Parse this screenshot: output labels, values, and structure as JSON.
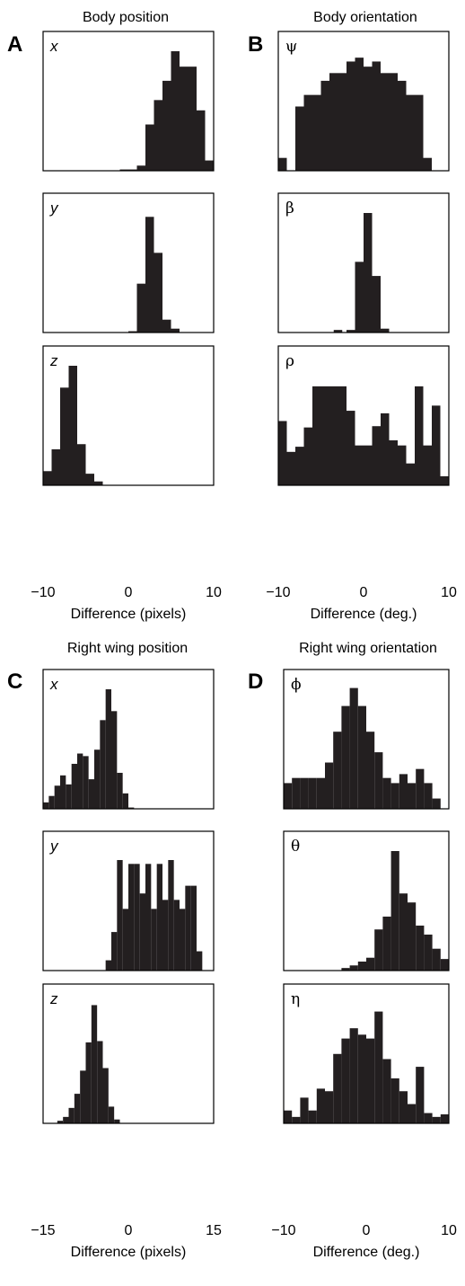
{
  "column_titles": {
    "A": "Body position",
    "B": "Body orientation",
    "C": "Right wing position",
    "D": "Right wing orientation"
  },
  "panel_letters": [
    "A",
    "B",
    "C",
    "D"
  ],
  "chart_data": [
    {
      "panel": "A",
      "type": "bar",
      "title": "Body position",
      "xlabel": "Difference (pixels)",
      "xlim": [
        -10,
        10
      ],
      "xticks": [
        "−10",
        "0",
        "10"
      ],
      "subplots": [
        {
          "label": "x",
          "bin_width": 1,
          "ymax": 1,
          "bins": [
            {
              "x": -0.5,
              "h": 0.01
            },
            {
              "x": 0.5,
              "h": 0.01
            },
            {
              "x": 1.5,
              "h": 0.04
            },
            {
              "x": 2.5,
              "h": 0.36
            },
            {
              "x": 3.5,
              "h": 0.55
            },
            {
              "x": 4.5,
              "h": 0.7
            },
            {
              "x": 5.5,
              "h": 0.93
            },
            {
              "x": 6.5,
              "h": 0.81
            },
            {
              "x": 7.5,
              "h": 0.81
            },
            {
              "x": 8.5,
              "h": 0.47
            },
            {
              "x": 9.5,
              "h": 0.08
            }
          ]
        },
        {
          "label": "y",
          "bin_width": 1,
          "ymax": 1,
          "bins": [
            {
              "x": 0.5,
              "h": 0.01
            },
            {
              "x": 1.5,
              "h": 0.38
            },
            {
              "x": 2.5,
              "h": 0.9
            },
            {
              "x": 3.5,
              "h": 0.62
            },
            {
              "x": 4.5,
              "h": 0.1
            },
            {
              "x": 5.5,
              "h": 0.03
            }
          ]
        },
        {
          "label": "z",
          "bin_width": 1,
          "ymax": 1,
          "bins": [
            {
              "x": -9.5,
              "h": 0.11
            },
            {
              "x": -8.5,
              "h": 0.28
            },
            {
              "x": -7.5,
              "h": 0.76
            },
            {
              "x": -6.5,
              "h": 0.93
            },
            {
              "x": -5.5,
              "h": 0.32
            },
            {
              "x": -4.5,
              "h": 0.09
            },
            {
              "x": -3.5,
              "h": 0.03
            }
          ]
        }
      ]
    },
    {
      "panel": "B",
      "type": "bar",
      "title": "Body orientation",
      "xlabel": "Difference (deg.)",
      "xlim": [
        -10,
        10
      ],
      "xticks": [
        "−10",
        "0",
        "10"
      ],
      "subplots": [
        {
          "label": "ψ",
          "bin_width": 1,
          "ymax": 1,
          "bins": [
            {
              "x": -9.5,
              "h": 0.1
            },
            {
              "x": -7.5,
              "h": 0.5
            },
            {
              "x": -6.5,
              "h": 0.59
            },
            {
              "x": -5.5,
              "h": 0.59
            },
            {
              "x": -4.5,
              "h": 0.7
            },
            {
              "x": -3.5,
              "h": 0.76
            },
            {
              "x": -2.5,
              "h": 0.76
            },
            {
              "x": -1.5,
              "h": 0.85
            },
            {
              "x": -0.5,
              "h": 0.88
            },
            {
              "x": 0.5,
              "h": 0.81
            },
            {
              "x": 1.5,
              "h": 0.85
            },
            {
              "x": 2.5,
              "h": 0.76
            },
            {
              "x": 3.5,
              "h": 0.76
            },
            {
              "x": 4.5,
              "h": 0.7
            },
            {
              "x": 5.5,
              "h": 0.59
            },
            {
              "x": 6.5,
              "h": 0.59
            },
            {
              "x": 7.5,
              "h": 0.1
            }
          ]
        },
        {
          "label": "β",
          "bin_width": 1,
          "ymax": 1,
          "bins": [
            {
              "x": -3,
              "h": 0.02
            },
            {
              "x": -1.5,
              "h": 0.02
            },
            {
              "x": -0.5,
              "h": 0.55
            },
            {
              "x": 0.5,
              "h": 0.93
            },
            {
              "x": 1.5,
              "h": 0.44
            },
            {
              "x": 2.5,
              "h": 0.03
            }
          ]
        },
        {
          "label": "ρ",
          "bin_width": 1,
          "ymax": 1,
          "bins": [
            {
              "x": -9.5,
              "h": 0.5
            },
            {
              "x": -8.5,
              "h": 0.26
            },
            {
              "x": -7.5,
              "h": 0.3
            },
            {
              "x": -6.5,
              "h": 0.45
            },
            {
              "x": -5.5,
              "h": 0.77
            },
            {
              "x": -4.5,
              "h": 0.77
            },
            {
              "x": -3.5,
              "h": 0.77
            },
            {
              "x": -2.5,
              "h": 0.77
            },
            {
              "x": -1.5,
              "h": 0.58
            },
            {
              "x": -0.5,
              "h": 0.31
            },
            {
              "x": 0.5,
              "h": 0.31
            },
            {
              "x": 1.5,
              "h": 0.46
            },
            {
              "x": 2.5,
              "h": 0.56
            },
            {
              "x": 3.5,
              "h": 0.35
            },
            {
              "x": 4.5,
              "h": 0.31
            },
            {
              "x": 5.5,
              "h": 0.17
            },
            {
              "x": 6.5,
              "h": 0.77
            },
            {
              "x": 7.5,
              "h": 0.31
            },
            {
              "x": 8.5,
              "h": 0.62
            },
            {
              "x": 9.5,
              "h": 0.07
            }
          ]
        }
      ]
    },
    {
      "panel": "C",
      "type": "bar",
      "title": "Right wing position",
      "xlabel": "Difference (pixels)",
      "xlim": [
        -15,
        15
      ],
      "xticks": [
        "−15",
        "0",
        "15"
      ],
      "subplots": [
        {
          "label": "x",
          "bin_width": 1,
          "ymax": 1,
          "bins": [
            {
              "x": -14.5,
              "h": 0.05
            },
            {
              "x": -13.5,
              "h": 0.1
            },
            {
              "x": -12.5,
              "h": 0.18
            },
            {
              "x": -11.5,
              "h": 0.26
            },
            {
              "x": -10.5,
              "h": 0.19
            },
            {
              "x": -9.5,
              "h": 0.35
            },
            {
              "x": -8.5,
              "h": 0.43
            },
            {
              "x": -7.5,
              "h": 0.41
            },
            {
              "x": -6.5,
              "h": 0.23
            },
            {
              "x": -5.5,
              "h": 0.46
            },
            {
              "x": -4.5,
              "h": 0.69
            },
            {
              "x": -3.5,
              "h": 0.93
            },
            {
              "x": -2.5,
              "h": 0.76
            },
            {
              "x": -1.5,
              "h": 0.28
            },
            {
              "x": -0.5,
              "h": 0.12
            },
            {
              "x": 0.5,
              "h": 0.01
            }
          ]
        },
        {
          "label": "y",
          "bin_width": 1,
          "ymax": 1,
          "bins": [
            {
              "x": -3.5,
              "h": 0.08
            },
            {
              "x": -2.5,
              "h": 0.3
            },
            {
              "x": -1.5,
              "h": 0.86
            },
            {
              "x": -0.5,
              "h": 0.48
            },
            {
              "x": 0.5,
              "h": 0.83
            },
            {
              "x": 1.5,
              "h": 0.83
            },
            {
              "x": 2.5,
              "h": 0.6
            },
            {
              "x": 3.5,
              "h": 0.83
            },
            {
              "x": 4.5,
              "h": 0.48
            },
            {
              "x": 5.5,
              "h": 0.83
            },
            {
              "x": 6.5,
              "h": 0.55
            },
            {
              "x": 7.5,
              "h": 0.86
            },
            {
              "x": 8.5,
              "h": 0.55
            },
            {
              "x": 9.5,
              "h": 0.48
            },
            {
              "x": 10.5,
              "h": 0.66
            },
            {
              "x": 11.5,
              "h": 0.66
            },
            {
              "x": 12.5,
              "h": 0.15
            }
          ]
        },
        {
          "label": "z",
          "bin_width": 1,
          "ymax": 1,
          "bins": [
            {
              "x": -12,
              "h": 0.02
            },
            {
              "x": -11,
              "h": 0.05
            },
            {
              "x": -10,
              "h": 0.12
            },
            {
              "x": -9,
              "h": 0.23
            },
            {
              "x": -8,
              "h": 0.41
            },
            {
              "x": -7,
              "h": 0.63
            },
            {
              "x": -6,
              "h": 0.92
            },
            {
              "x": -5,
              "h": 0.64
            },
            {
              "x": -4,
              "h": 0.43
            },
            {
              "x": -3,
              "h": 0.13
            },
            {
              "x": -2,
              "h": 0.03
            }
          ]
        }
      ]
    },
    {
      "panel": "D",
      "type": "bar",
      "title": "Right wing orientation",
      "xlabel": "Difference (deg.)",
      "xlim": [
        -10,
        10
      ],
      "xticks": [
        "−10",
        "0",
        "10"
      ],
      "subplots": [
        {
          "label": "ϕ",
          "bin_width": 1,
          "ymax": 1,
          "bins": [
            {
              "x": -9.5,
              "h": 0.2
            },
            {
              "x": -8.5,
              "h": 0.24
            },
            {
              "x": -7.5,
              "h": 0.24
            },
            {
              "x": -6.5,
              "h": 0.24
            },
            {
              "x": -5.5,
              "h": 0.24
            },
            {
              "x": -4.5,
              "h": 0.36
            },
            {
              "x": -3.5,
              "h": 0.6
            },
            {
              "x": -2.5,
              "h": 0.8
            },
            {
              "x": -1.5,
              "h": 0.94
            },
            {
              "x": -0.5,
              "h": 0.8
            },
            {
              "x": 0.5,
              "h": 0.6
            },
            {
              "x": 1.5,
              "h": 0.44
            },
            {
              "x": 2.5,
              "h": 0.24
            },
            {
              "x": 3.5,
              "h": 0.2
            },
            {
              "x": 4.5,
              "h": 0.27
            },
            {
              "x": 5.5,
              "h": 0.2
            },
            {
              "x": 6.5,
              "h": 0.31
            },
            {
              "x": 7.5,
              "h": 0.2
            },
            {
              "x": 8.5,
              "h": 0.08
            }
          ]
        },
        {
          "label": "θ",
          "bin_width": 1,
          "ymax": 1,
          "bins": [
            {
              "x": -2.5,
              "h": 0.02
            },
            {
              "x": -1.5,
              "h": 0.04
            },
            {
              "x": -0.5,
              "h": 0.07
            },
            {
              "x": 0.5,
              "h": 0.1
            },
            {
              "x": 1.5,
              "h": 0.32
            },
            {
              "x": 2.5,
              "h": 0.42
            },
            {
              "x": 3.5,
              "h": 0.93
            },
            {
              "x": 4.5,
              "h": 0.6
            },
            {
              "x": 5.5,
              "h": 0.53
            },
            {
              "x": 6.5,
              "h": 0.35
            },
            {
              "x": 7.5,
              "h": 0.28
            },
            {
              "x": 8.5,
              "h": 0.17
            },
            {
              "x": 9.5,
              "h": 0.09
            }
          ]
        },
        {
          "label": "η",
          "bin_width": 1,
          "ymax": 1,
          "bins": [
            {
              "x": -9.5,
              "h": 0.1
            },
            {
              "x": -8.5,
              "h": 0.05
            },
            {
              "x": -7.5,
              "h": 0.2
            },
            {
              "x": -6.5,
              "h": 0.1
            },
            {
              "x": -5.5,
              "h": 0.27
            },
            {
              "x": -4.5,
              "h": 0.25
            },
            {
              "x": -3.5,
              "h": 0.54
            },
            {
              "x": -2.5,
              "h": 0.66
            },
            {
              "x": -1.5,
              "h": 0.74
            },
            {
              "x": -0.5,
              "h": 0.69
            },
            {
              "x": 0.5,
              "h": 0.66
            },
            {
              "x": 1.5,
              "h": 0.87
            },
            {
              "x": 2.5,
              "h": 0.5
            },
            {
              "x": 3.5,
              "h": 0.35
            },
            {
              "x": 4.5,
              "h": 0.25
            },
            {
              "x": 5.5,
              "h": 0.15
            },
            {
              "x": 6.5,
              "h": 0.44
            },
            {
              "x": 7.5,
              "h": 0.08
            },
            {
              "x": 8.5,
              "h": 0.05
            },
            {
              "x": 9.5,
              "h": 0.07
            }
          ]
        }
      ]
    }
  ]
}
